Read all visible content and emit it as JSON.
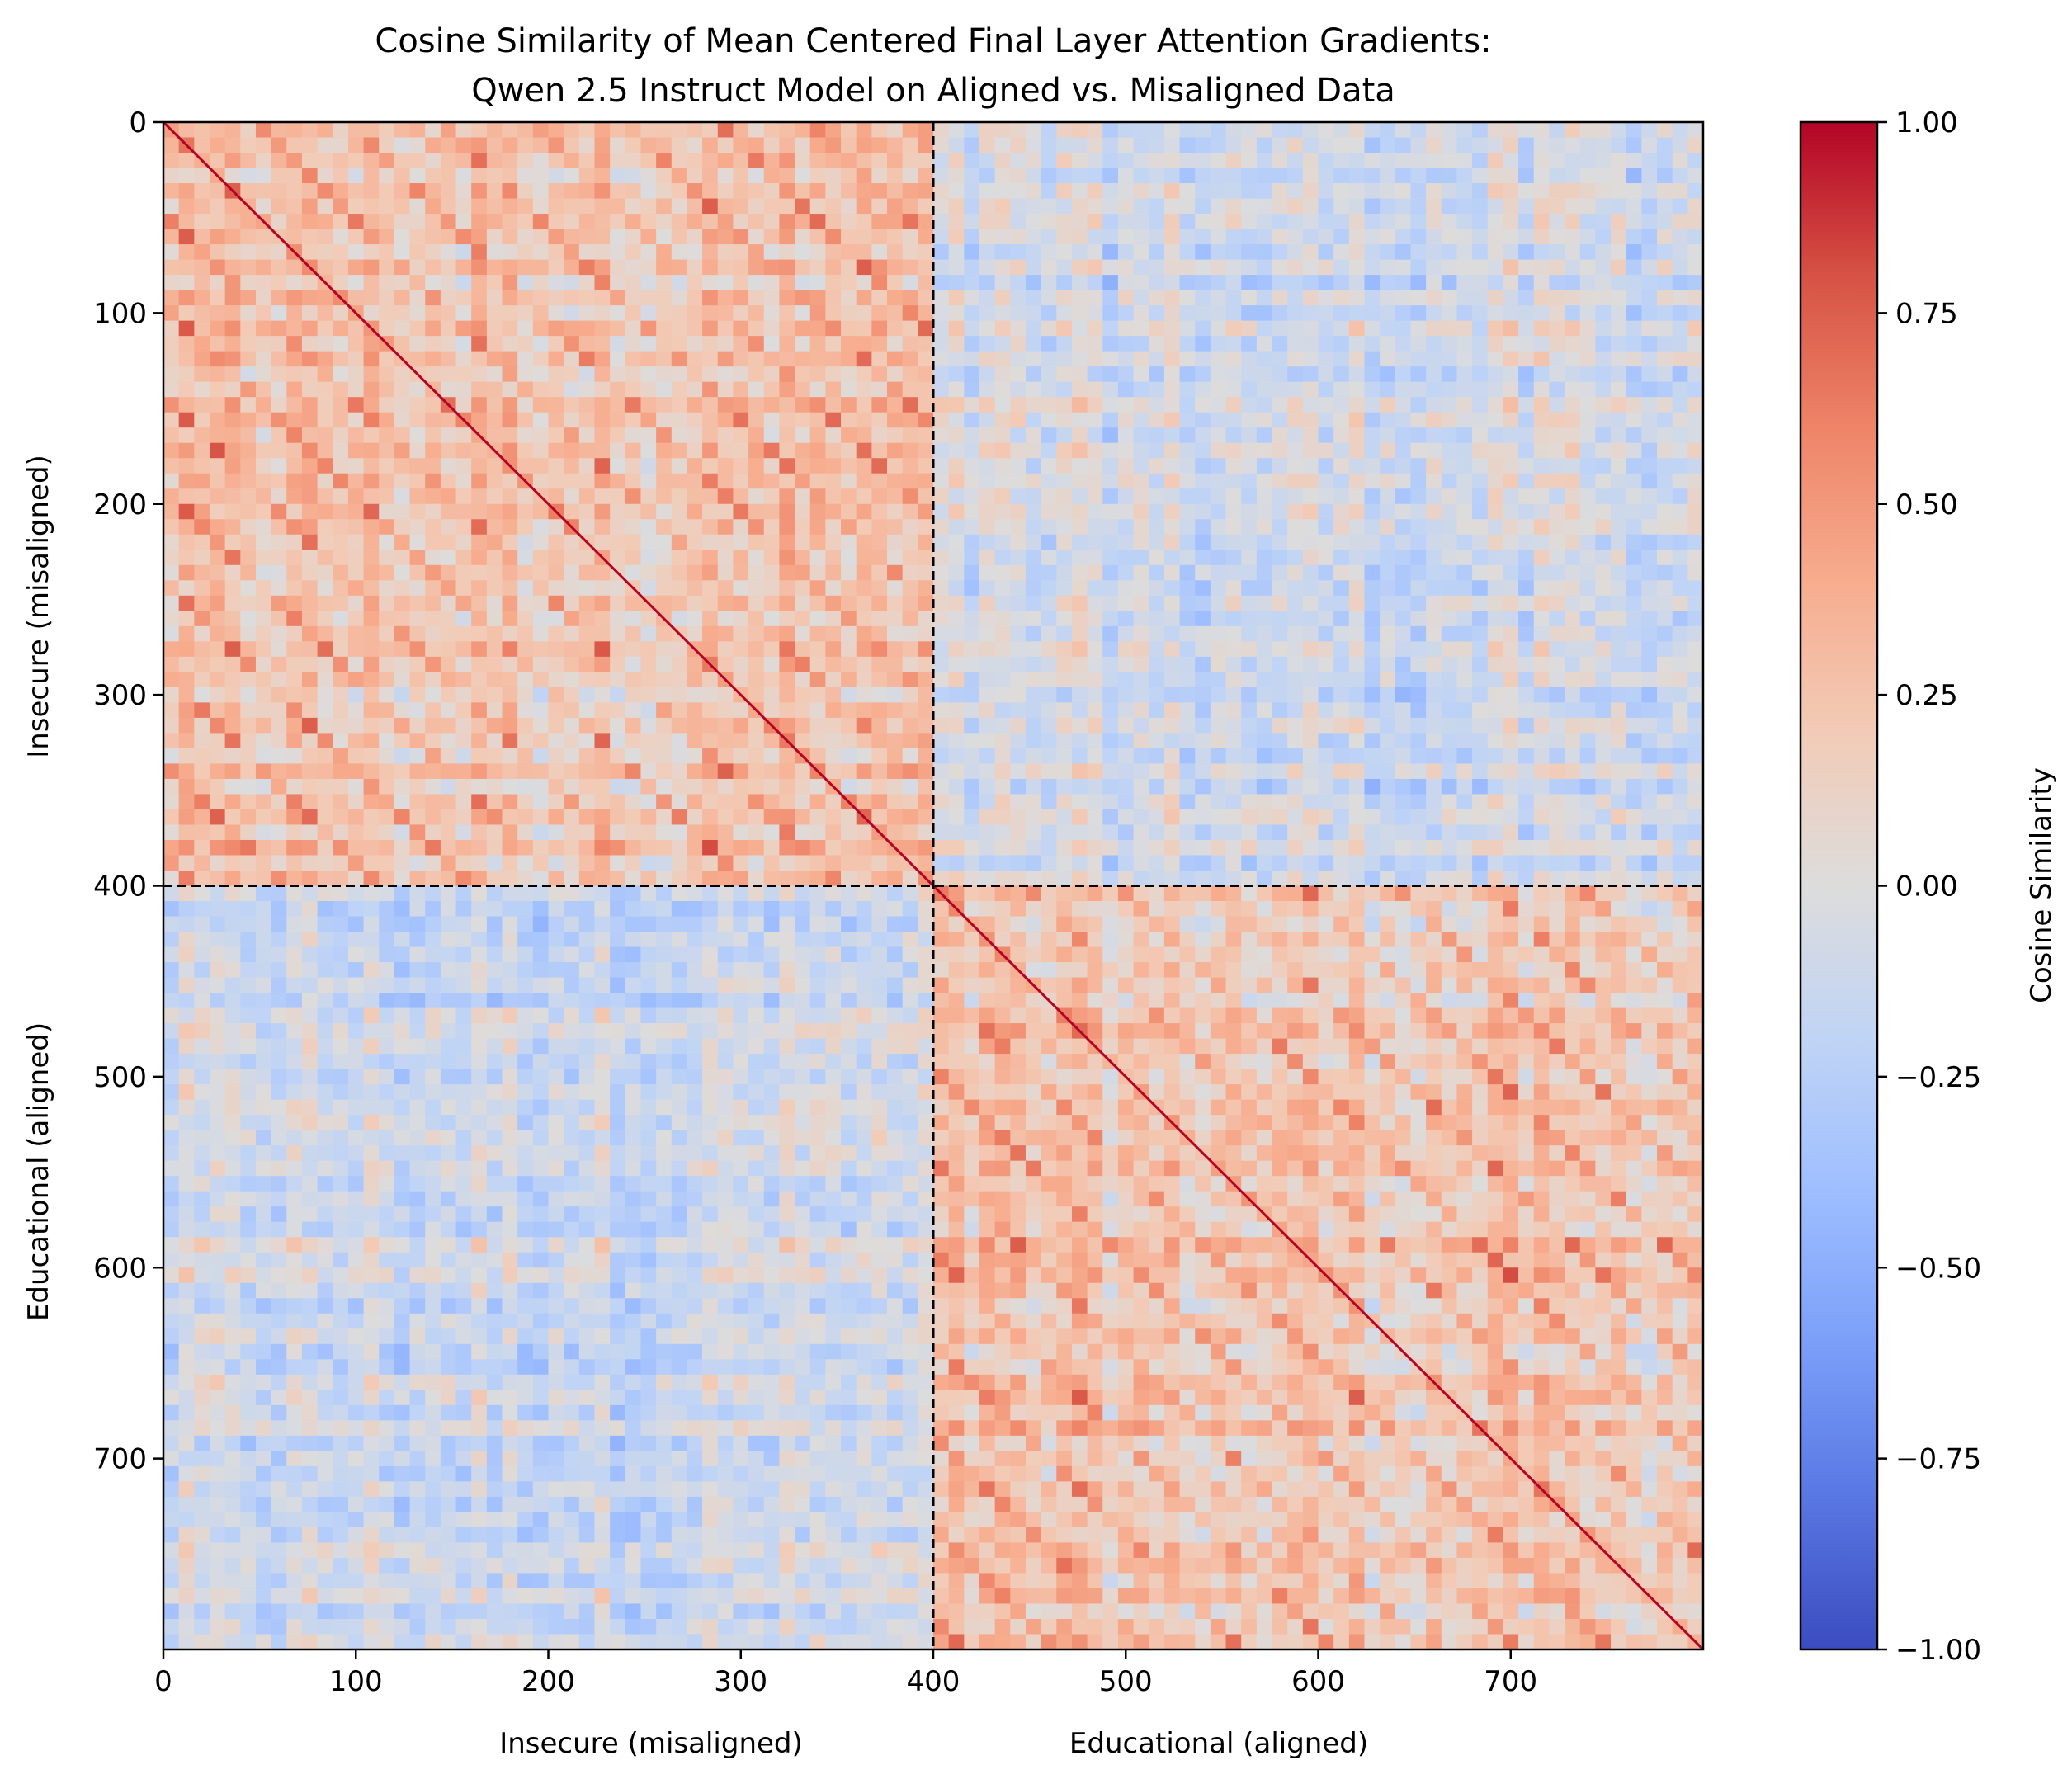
{
  "chart_data": {
    "type": "heatmap",
    "title_lines": [
      "Cosine Similarity of Mean Centered Final Layer Attention Gradients:",
      "Qwen 2.5 Instruct Model on Aligned vs. Misaligned Data"
    ],
    "matrix_size": 800,
    "split_index": 400,
    "x_ticks": [
      0,
      100,
      200,
      300,
      400,
      500,
      600,
      700
    ],
    "y_ticks": [
      0,
      100,
      200,
      300,
      400,
      500,
      600,
      700
    ],
    "x_group_labels": [
      "Insecure (misaligned)",
      "Educational (aligned)"
    ],
    "y_group_labels": [
      "Insecure (misaligned)",
      "Educational (aligned)"
    ],
    "colorbar": {
      "label": "Cosine Similarity",
      "vmin": -1.0,
      "vmax": 1.0,
      "ticks": [
        1.0,
        0.75,
        0.5,
        0.25,
        0.0,
        -0.25,
        -0.5,
        -0.75,
        -1.0
      ],
      "tick_labels": [
        "1.00",
        "0.75",
        "0.50",
        "0.25",
        "0.00",
        "−0.25",
        "−0.50",
        "−0.75",
        "−1.00"
      ],
      "colormap": "coolwarm",
      "colors": [
        "#3b4cc0",
        "#5977e3",
        "#7b9ff9",
        "#9ebeff",
        "#c0d4f5",
        "#dddcdc",
        "#f2cbb7",
        "#f7ac8e",
        "#ee8468",
        "#d65244",
        "#b40426"
      ]
    },
    "blocks": {
      "insecure_insecure_mean": 0.2,
      "educational_educational_mean": 0.2,
      "cross_mean": -0.1,
      "diagonal": 1.0
    }
  }
}
